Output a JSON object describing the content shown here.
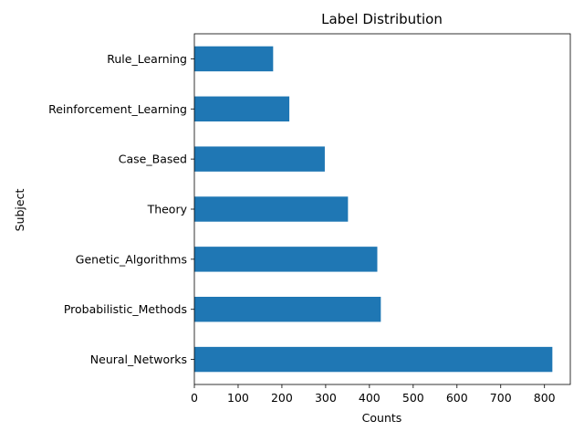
{
  "chart_data": {
    "type": "bar",
    "orientation": "horizontal",
    "title": "Label Distribution",
    "xlabel": "Counts",
    "ylabel": "Subject",
    "categories": [
      "Neural_Networks",
      "Probabilistic_Methods",
      "Genetic_Algorithms",
      "Theory",
      "Case_Based",
      "Reinforcement_Learning",
      "Rule_Learning"
    ],
    "values": [
      818,
      426,
      418,
      351,
      298,
      217,
      180
    ],
    "xlim": [
      0,
      859
    ],
    "xticks": [
      0,
      100,
      200,
      300,
      400,
      500,
      600,
      700,
      800
    ],
    "xtick_labels": [
      "0",
      "100",
      "200",
      "300",
      "400",
      "500",
      "600",
      "700",
      "800"
    ],
    "grid": false,
    "legend": "none",
    "bar_color": "#1f77b4"
  }
}
